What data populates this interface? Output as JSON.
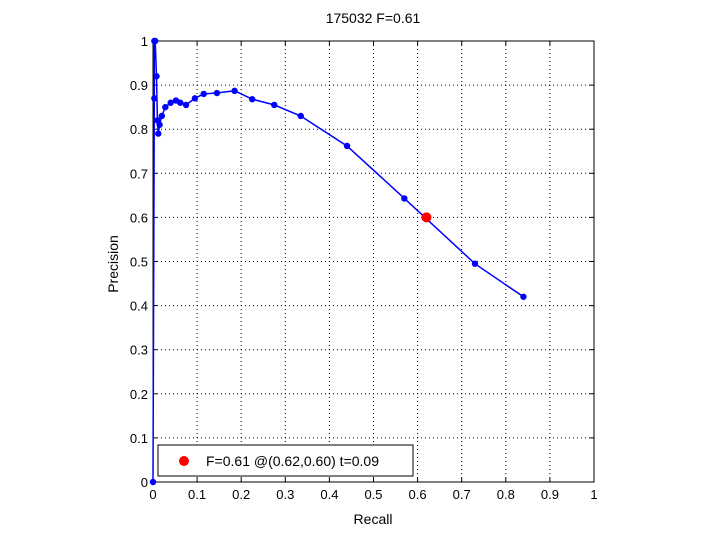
{
  "chart_data": {
    "type": "line",
    "title": "175032 F=0.61",
    "xlabel": "Recall",
    "ylabel": "Precision",
    "xlim": [
      0,
      1
    ],
    "ylim": [
      0,
      1
    ],
    "grid": true,
    "xticks": [
      "0",
      "0.1",
      "0.2",
      "0.3",
      "0.4",
      "0.5",
      "0.6",
      "0.7",
      "0.8",
      "0.9",
      "1"
    ],
    "yticks": [
      "0",
      "0.1",
      "0.2",
      "0.3",
      "0.4",
      "0.5",
      "0.6",
      "0.7",
      "0.8",
      "0.9",
      "1"
    ],
    "series": [
      {
        "color": "#0000ff",
        "x": [
          0.0,
          0.003,
          0.003,
          0.005,
          0.008,
          0.01,
          0.012,
          0.015,
          0.02,
          0.028,
          0.04,
          0.052,
          0.062,
          0.075,
          0.095,
          0.115,
          0.145,
          0.185,
          0.225,
          0.275,
          0.335,
          0.44,
          0.57,
          0.73,
          0.84
        ],
        "y": [
          0.0,
          0.87,
          1.0,
          1.0,
          0.92,
          0.82,
          0.79,
          0.81,
          0.83,
          0.85,
          0.86,
          0.865,
          0.86,
          0.855,
          0.87,
          0.88,
          0.882,
          0.887,
          0.868,
          0.855,
          0.83,
          0.762,
          0.643,
          0.495,
          0.42
        ]
      }
    ],
    "highlight": {
      "x": 0.62,
      "y": 0.6,
      "color": "#ff0000"
    },
    "legend": {
      "label": "F=0.61 @(0.62,0.60) t=0.09",
      "position": "bottom-left"
    }
  }
}
